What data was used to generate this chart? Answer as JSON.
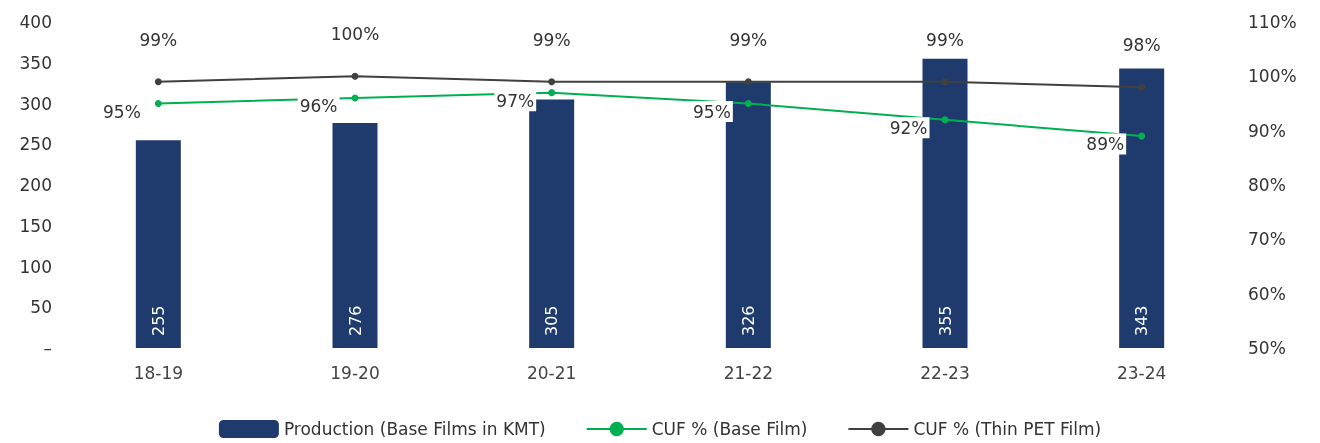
{
  "chart_data": {
    "type": "bar",
    "categories": [
      "18-19",
      "19-20",
      "20-21",
      "21-22",
      "22-23",
      "23-24"
    ],
    "series": [
      {
        "name": "Production (Base Films in KMT)",
        "color": "#1f3b6e",
        "values": [
          255,
          276,
          305,
          326,
          355,
          343
        ],
        "value_labels": [
          "255",
          "276",
          "305",
          "326",
          "355",
          "343"
        ]
      },
      {
        "name": "CUF % (Base Film)",
        "type": "line",
        "axis": "y2",
        "color": "#00b050",
        "values": [
          95,
          96,
          97,
          95,
          92,
          89
        ],
        "value_labels": [
          "95%",
          "96%",
          "97%",
          "95%",
          "92%",
          "89%"
        ]
      },
      {
        "name": "CUF % (Thin PET Film)",
        "type": "line",
        "axis": "y2",
        "color": "#404040",
        "values": [
          99,
          100,
          99,
          99,
          99,
          98
        ],
        "value_labels": [
          "99%",
          "100%",
          "99%",
          "99%",
          "99%",
          "98%"
        ]
      }
    ],
    "ylim": [
      0,
      400
    ],
    "yticks": [
      {
        "value": 0,
        "label": "–"
      },
      50,
      100,
      150,
      200,
      250,
      300,
      350,
      400
    ],
    "y2lim": [
      50,
      110
    ],
    "y2ticks": [
      {
        "value": 50,
        "label": "50%"
      },
      {
        "value": 60,
        "label": "60%"
      },
      {
        "value": 70,
        "label": "70%"
      },
      {
        "value": 80,
        "label": "80%"
      },
      {
        "value": 90,
        "label": "90%"
      },
      {
        "value": 100,
        "label": "100%"
      },
      {
        "value": 110,
        "label": "110%"
      }
    ],
    "grid": false,
    "legend": "bottom",
    "marker": "circle"
  }
}
